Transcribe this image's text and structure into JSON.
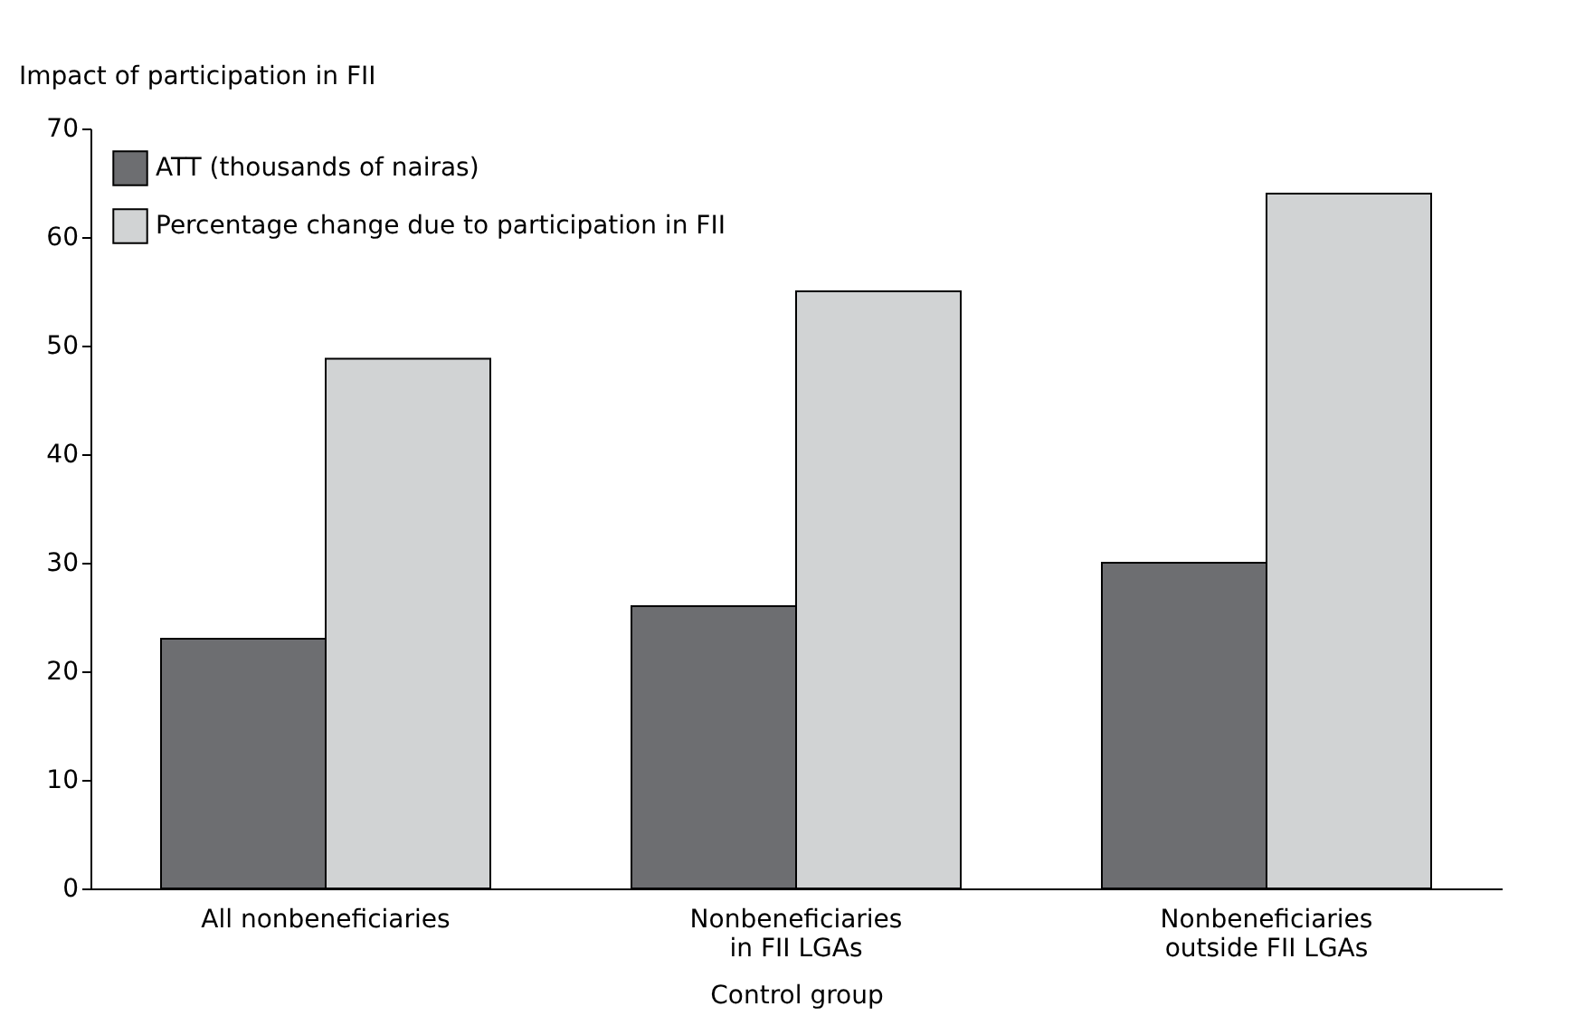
{
  "chart_data": {
    "type": "bar",
    "xlabel": "Control group",
    "ylabel": "Impact of participation in FII",
    "categories": [
      "All nonbeneficiaries",
      "Nonbeneficiaries\nin FII LGAs",
      "Nonbeneficiaries\noutside FII LGAs"
    ],
    "series": [
      {
        "name": "ATT (thousands of nairas)",
        "color": "#6d6e71",
        "values": [
          23,
          26,
          30
        ]
      },
      {
        "name": "Percentage change due to participation in FII",
        "color": "#d1d3d4",
        "values": [
          48.8,
          55,
          64
        ]
      }
    ],
    "ylim": [
      0,
      70
    ],
    "yticks": [
      0,
      10,
      20,
      30,
      40,
      50,
      60,
      70
    ],
    "grid": false,
    "legend": "top left"
  }
}
